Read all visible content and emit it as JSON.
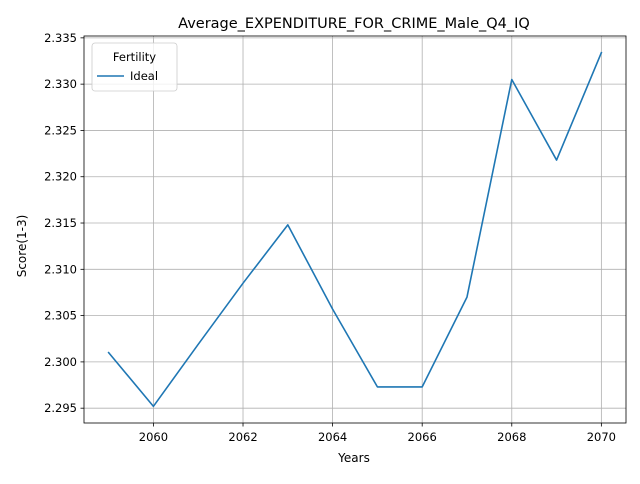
{
  "chart_data": {
    "type": "line",
    "title": "Average_EXPENDITURE_FOR_CRIME_Male_Q4_IQ",
    "xlabel": "Years",
    "ylabel": "Score(1-3)",
    "xlim": [
      2058.45,
      2070.55
    ],
    "ylim": [
      2.2934,
      2.3352
    ],
    "x_ticks": [
      2060,
      2062,
      2064,
      2066,
      2068,
      2070
    ],
    "y_ticks": [
      2.295,
      2.3,
      2.305,
      2.31,
      2.315,
      2.32,
      2.325,
      2.33,
      2.335
    ],
    "x_tick_labels": [
      "2060",
      "2062",
      "2064",
      "2066",
      "2068",
      "2070"
    ],
    "y_tick_labels": [
      "2.295",
      "2.300",
      "2.305",
      "2.310",
      "2.315",
      "2.320",
      "2.325",
      "2.330",
      "2.335"
    ],
    "grid": true,
    "legend": {
      "title": "Fertility",
      "placement": "top-left"
    },
    "series": [
      {
        "name": "Ideal",
        "color": "#1f77b4",
        "x": [
          2059,
          2060,
          2061,
          2062,
          2063,
          2064,
          2065,
          2066,
          2067,
          2068,
          2069,
          2070
        ],
        "y": [
          2.301,
          2.2952,
          2.3019,
          2.3085,
          2.3148,
          2.3057,
          2.2973,
          2.2973,
          2.307,
          2.3305,
          2.3218,
          2.3334
        ]
      }
    ]
  }
}
